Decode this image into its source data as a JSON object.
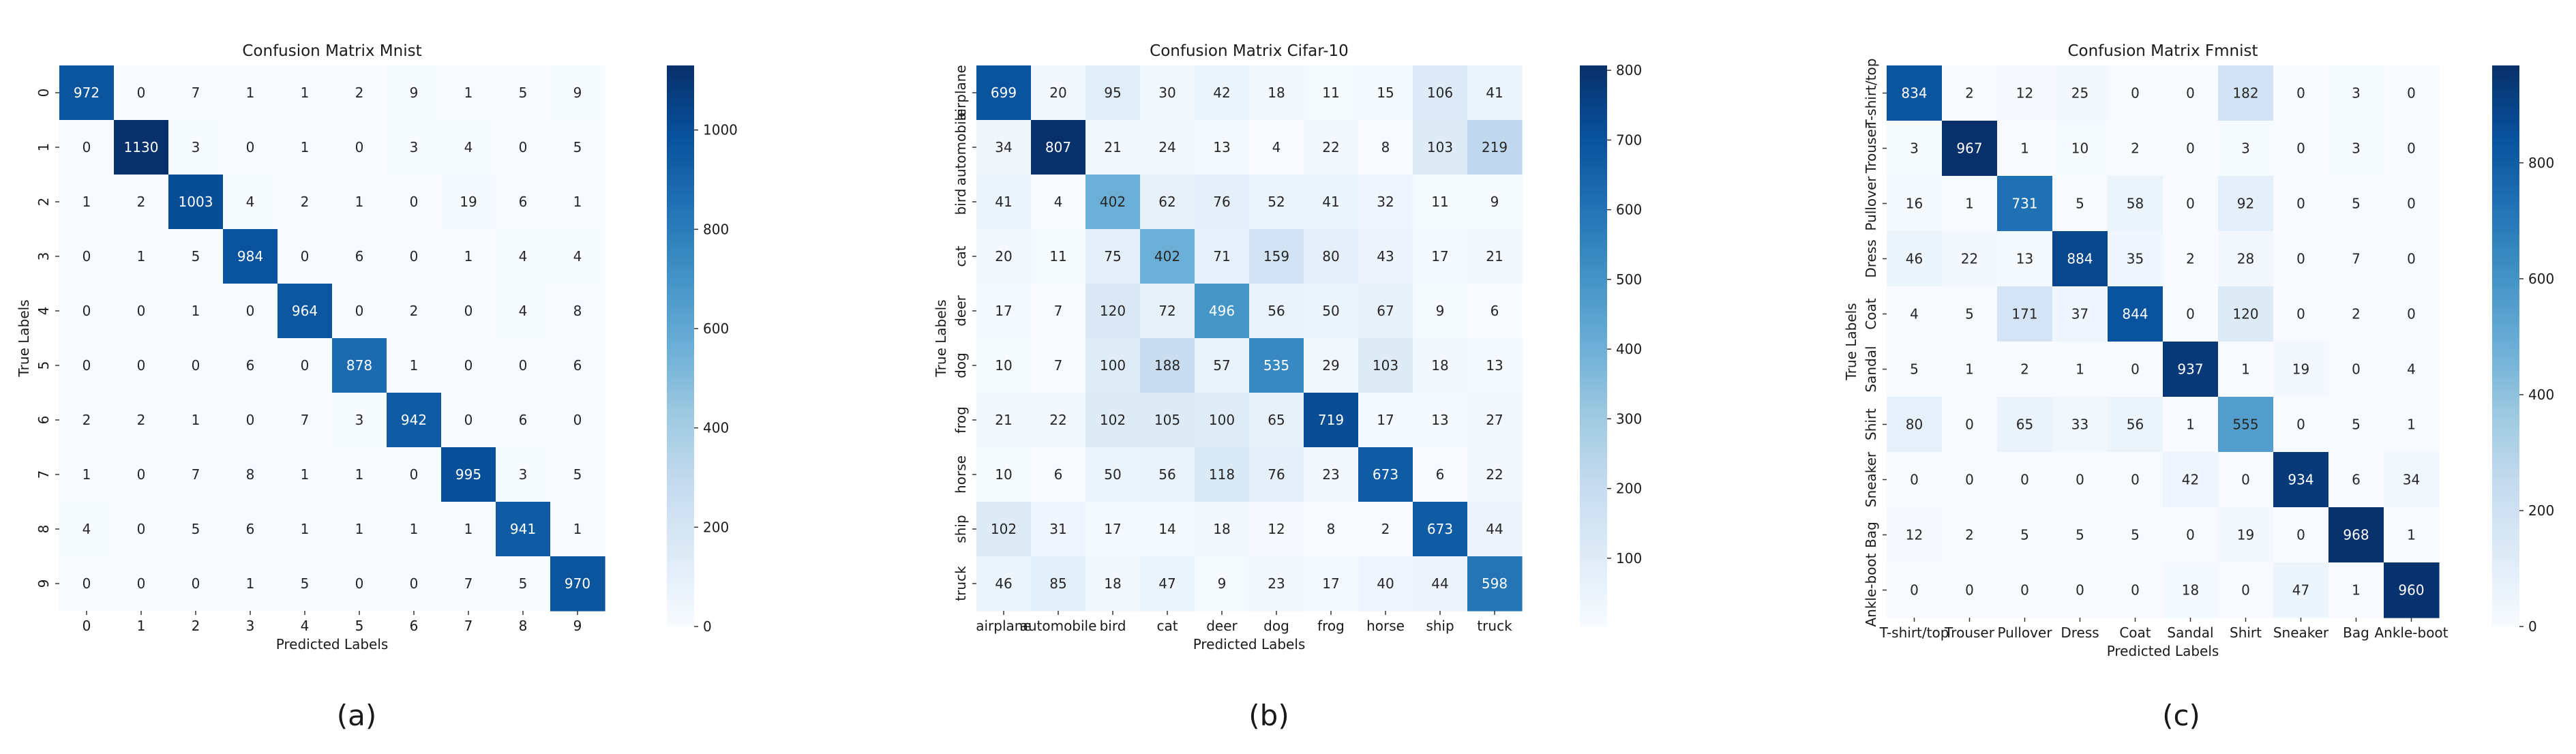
{
  "colormap": {
    "name": "Blues",
    "stops": [
      "#f7fbff",
      "#deebf7",
      "#c6dbef",
      "#9ecae1",
      "#6baed6",
      "#4292c6",
      "#2171b5",
      "#08519c",
      "#08306b"
    ]
  },
  "chart_data": [
    {
      "type": "heatmap",
      "title": "Confusion Matrix Mnist",
      "xlabel": "Predicted Labels",
      "ylabel": "True Labels",
      "caption": "(a)",
      "x_categories": [
        "0",
        "1",
        "2",
        "3",
        "4",
        "5",
        "6",
        "7",
        "8",
        "9"
      ],
      "y_categories": [
        "0",
        "1",
        "2",
        "3",
        "4",
        "5",
        "6",
        "7",
        "8",
        "9"
      ],
      "values": [
        [
          972,
          0,
          7,
          1,
          1,
          2,
          9,
          1,
          5,
          9
        ],
        [
          0,
          1130,
          3,
          0,
          1,
          0,
          3,
          4,
          0,
          5
        ],
        [
          1,
          2,
          1003,
          4,
          2,
          1,
          0,
          19,
          6,
          1
        ],
        [
          0,
          1,
          5,
          984,
          0,
          6,
          0,
          1,
          4,
          4
        ],
        [
          0,
          0,
          1,
          0,
          964,
          0,
          2,
          0,
          4,
          8
        ],
        [
          0,
          0,
          0,
          6,
          0,
          878,
          1,
          0,
          0,
          6
        ],
        [
          2,
          2,
          1,
          0,
          7,
          3,
          942,
          0,
          6,
          0
        ],
        [
          1,
          0,
          7,
          8,
          1,
          1,
          0,
          995,
          3,
          5
        ],
        [
          4,
          0,
          5,
          6,
          1,
          1,
          1,
          1,
          941,
          1
        ],
        [
          0,
          0,
          0,
          1,
          5,
          0,
          0,
          7,
          5,
          970
        ]
      ],
      "colorbar_ticks": [
        0,
        200,
        400,
        600,
        800,
        1000
      ],
      "vmin": 0,
      "vmax": 1130
    },
    {
      "type": "heatmap",
      "title": "Confusion Matrix Cifar-10",
      "xlabel": "Predicted Labels",
      "ylabel": "True Labels",
      "caption": "(b)",
      "x_categories": [
        "airplane",
        "automobile",
        "bird",
        "cat",
        "deer",
        "dog",
        "frog",
        "horse",
        "ship",
        "truck"
      ],
      "y_categories": [
        "airplane",
        "automobile",
        "bird",
        "cat",
        "deer",
        "dog",
        "frog",
        "horse",
        "ship",
        "truck"
      ],
      "values": [
        [
          699,
          20,
          95,
          30,
          42,
          18,
          11,
          15,
          106,
          41
        ],
        [
          34,
          807,
          21,
          24,
          13,
          4,
          22,
          8,
          103,
          219
        ],
        [
          41,
          4,
          402,
          62,
          76,
          52,
          41,
          32,
          11,
          9
        ],
        [
          20,
          11,
          75,
          402,
          71,
          159,
          80,
          43,
          17,
          21
        ],
        [
          17,
          7,
          120,
          72,
          496,
          56,
          50,
          67,
          9,
          6
        ],
        [
          10,
          7,
          100,
          188,
          57,
          535,
          29,
          103,
          18,
          13
        ],
        [
          21,
          22,
          102,
          105,
          100,
          65,
          719,
          17,
          13,
          27
        ],
        [
          10,
          6,
          50,
          56,
          118,
          76,
          23,
          673,
          6,
          22
        ],
        [
          102,
          31,
          17,
          14,
          18,
          12,
          8,
          2,
          673,
          44
        ],
        [
          46,
          85,
          18,
          47,
          9,
          23,
          17,
          40,
          44,
          598
        ]
      ],
      "colorbar_ticks": [
        100,
        200,
        300,
        400,
        500,
        600,
        700,
        800
      ],
      "vmin": 2,
      "vmax": 807
    },
    {
      "type": "heatmap",
      "title": "Confusion Matrix Fmnist",
      "xlabel": "Predicted Labels",
      "ylabel": "True Labels",
      "caption": "(c)",
      "x_categories": [
        "T-shirt/top",
        "Trouser",
        "Pullover",
        "Dress",
        "Coat",
        "Sandal",
        "Shirt",
        "Sneaker",
        "Bag",
        "Ankle-boot"
      ],
      "y_categories": [
        "T-shirt/top",
        "Trouser",
        "Pullover",
        "Dress",
        "Coat",
        "Sandal",
        "Shirt",
        "Sneaker",
        "Bag",
        "Ankle-boot"
      ],
      "values": [
        [
          834,
          2,
          12,
          25,
          0,
          0,
          182,
          0,
          3,
          0
        ],
        [
          3,
          967,
          1,
          10,
          2,
          0,
          3,
          0,
          3,
          0
        ],
        [
          16,
          1,
          731,
          5,
          58,
          0,
          92,
          0,
          5,
          0
        ],
        [
          46,
          22,
          13,
          884,
          35,
          2,
          28,
          0,
          7,
          0
        ],
        [
          4,
          5,
          171,
          37,
          844,
          0,
          120,
          0,
          2,
          0
        ],
        [
          5,
          1,
          2,
          1,
          0,
          937,
          1,
          19,
          0,
          4
        ],
        [
          80,
          0,
          65,
          33,
          56,
          1,
          555,
          0,
          5,
          1
        ],
        [
          0,
          0,
          0,
          0,
          0,
          42,
          0,
          934,
          6,
          34
        ],
        [
          12,
          2,
          5,
          5,
          5,
          0,
          19,
          0,
          968,
          1
        ],
        [
          0,
          0,
          0,
          0,
          0,
          18,
          0,
          47,
          1,
          960
        ]
      ],
      "colorbar_ticks": [
        0,
        200,
        400,
        600,
        800
      ],
      "vmin": 0,
      "vmax": 968
    }
  ]
}
